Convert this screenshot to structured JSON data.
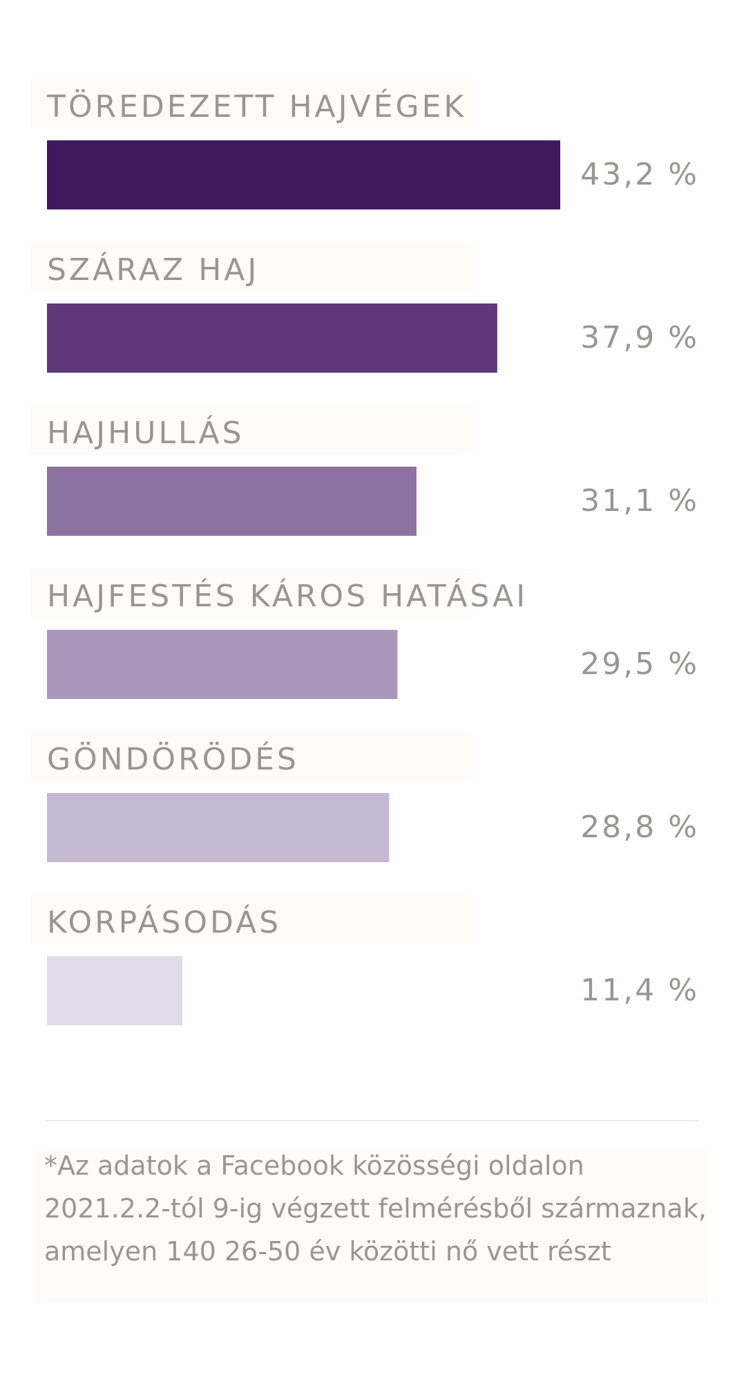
{
  "chart_data": {
    "type": "hbar",
    "categories": [
      "TÖREDEZETT HAJVÉGEK",
      "SZÁRAZ HAJ",
      "HAJHULLÁS",
      "HAJFESTÉS KÁROS HATÁSAI",
      "GÖNDÖRÖDÉS",
      "KORPÁSODÁS"
    ],
    "values": [
      43.2,
      37.9,
      31.1,
      29.5,
      28.8,
      11.4
    ],
    "value_labels": [
      "43,2 %",
      "37,9 %",
      "31,1 %",
      "29,5 %",
      "28,8 %",
      "11,4 %"
    ],
    "colors": [
      "#3f1a5e",
      "#5e3778",
      "#8b72a0",
      "#a996bb",
      "#c5b8d2",
      "#e0dbe8"
    ],
    "footnote": [
      "*Az adatok a Facebook közösségi oldalon",
      "2021.2.2-tól 9-ig végzett felmérésből származnak,",
      "amelyen 140 26-50 év közötti nő vett részt"
    ]
  }
}
